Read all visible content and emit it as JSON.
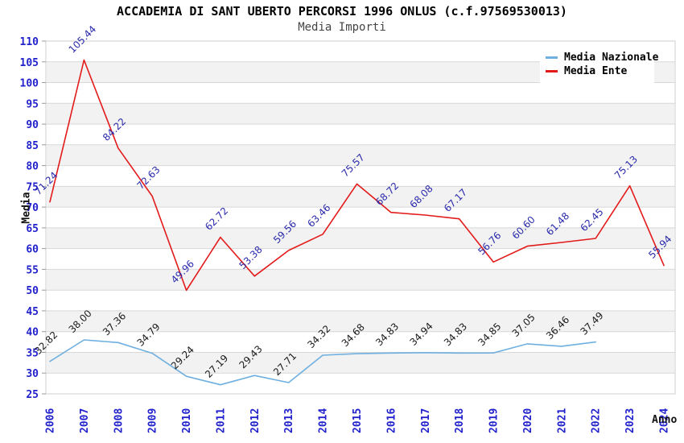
{
  "header": {
    "title": "ACCADEMIA DI SANT UBERTO PERCORSI 1996 ONLUS (c.f.97569530013)",
    "subtitle": "Media Importi"
  },
  "axes": {
    "y_title": "Media",
    "x_title": "Anno",
    "y_min": 25,
    "y_max": 110,
    "y_step": 5
  },
  "legend": {
    "items": [
      {
        "label": "Media Nazionale",
        "color": "#6fb0e0"
      },
      {
        "label": "Media Ente",
        "color": "#e31a1a"
      }
    ]
  },
  "chart_data": {
    "type": "line",
    "title": "Media Importi",
    "xlabel": "Anno",
    "ylabel": "Media",
    "ylim": [
      25,
      110
    ],
    "grid": "horizontal",
    "legend_position": "top-right",
    "x": [
      "2006",
      "2007",
      "2008",
      "2009",
      "2010",
      "2011",
      "2012",
      "2013",
      "2014",
      "2015",
      "2016",
      "2017",
      "2018",
      "2019",
      "2020",
      "2021",
      "2022",
      "2023",
      "2024"
    ],
    "series": [
      {
        "name": "Media Nazionale",
        "color": "#6fb0e0",
        "label_color": "#1c1c1c",
        "values": [
          32.82,
          38.0,
          37.36,
          34.79,
          29.24,
          27.19,
          29.43,
          27.71,
          34.32,
          34.68,
          34.83,
          34.94,
          34.83,
          34.85,
          37.05,
          36.46,
          37.49,
          null,
          null
        ]
      },
      {
        "name": "Media Ente",
        "color": "#e31a1a",
        "label_color": "#2b2bad",
        "values": [
          71.24,
          105.44,
          84.22,
          72.63,
          49.96,
          62.72,
          53.38,
          59.56,
          63.46,
          75.57,
          68.72,
          68.08,
          67.17,
          56.76,
          60.6,
          61.48,
          62.45,
          75.13,
          55.94
        ]
      }
    ]
  }
}
